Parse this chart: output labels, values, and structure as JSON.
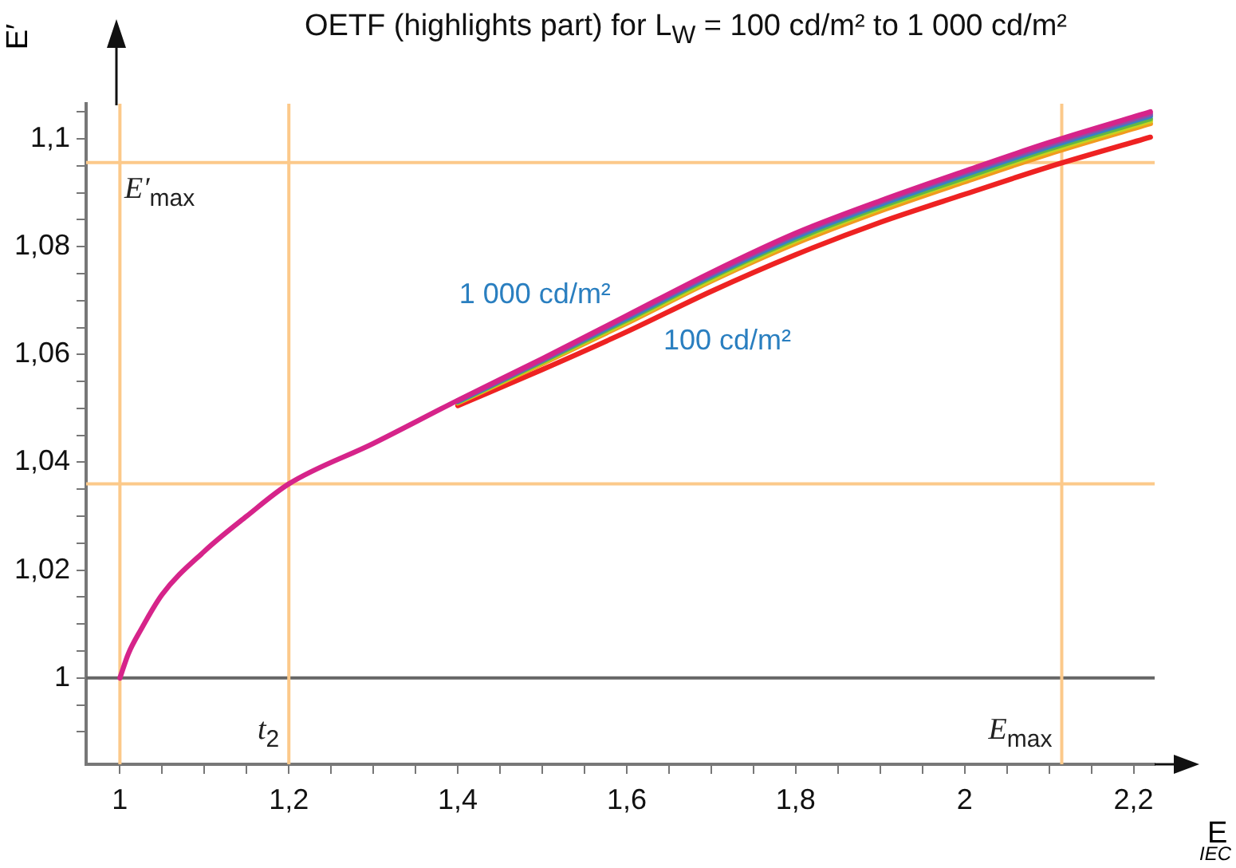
{
  "chart_data": {
    "type": "line",
    "title": "OETF (highlights part) for L$_{W}$ = 100 cd/m² to 1 000 cd/m²",
    "xlabel": "E",
    "ylabel": "E′",
    "x": [
      1,
      1.01,
      1.025,
      1.05,
      1.1,
      1.15,
      1.2,
      1.3,
      1.4,
      1.5,
      1.6,
      1.7,
      1.8,
      1.9,
      2.0,
      2.1,
      2.22
    ],
    "series": [
      {
        "color": "#d6248a",
        "values": [
          1,
          1.0045,
          1.009,
          1.0155,
          1.0235,
          1.03,
          1.036,
          1.0435,
          1.0515,
          1.0592,
          1.0672,
          1.0752,
          1.0825,
          1.0885,
          1.094,
          1.0993,
          1.105
        ]
      },
      {
        "color": "#8e4fa8",
        "values": [
          null,
          null,
          null,
          null,
          null,
          null,
          null,
          null,
          1.0514,
          1.059,
          1.067,
          1.0749,
          1.0822,
          1.0882,
          1.0937,
          1.0989,
          1.1046
        ]
      },
      {
        "color": "#3a7fc4",
        "values": [
          null,
          null,
          null,
          null,
          null,
          null,
          null,
          null,
          1.0513,
          1.0589,
          1.0667,
          1.0746,
          1.0818,
          1.0878,
          1.0933,
          1.0985,
          1.1042
        ]
      },
      {
        "color": "#5fb847",
        "values": [
          null,
          null,
          null,
          null,
          null,
          null,
          null,
          null,
          1.0512,
          1.0587,
          1.0664,
          1.0743,
          1.0814,
          1.0874,
          1.0928,
          1.0981,
          1.1037
        ]
      },
      {
        "color": "#c8d11e",
        "values": [
          null,
          null,
          null,
          null,
          null,
          null,
          null,
          null,
          1.0511,
          1.0585,
          1.0661,
          1.0739,
          1.0811,
          1.0871,
          1.0925,
          1.0977,
          1.1033
        ]
      },
      {
        "color": "#f29a1e",
        "values": [
          null,
          null,
          null,
          null,
          null,
          null,
          null,
          null,
          1.051,
          1.0583,
          1.0658,
          1.0736,
          1.0806,
          1.0866,
          1.092,
          1.0972,
          1.1028
        ]
      },
      {
        "color": "#ee2222",
        "values": [
          null,
          null,
          null,
          null,
          null,
          null,
          null,
          null,
          1.0505,
          1.0572,
          1.0642,
          1.0717,
          1.0785,
          1.0845,
          1.0897,
          1.0948,
          1.1003
        ]
      }
    ],
    "xlim": [
      0.96,
      2.225
    ],
    "xticks": [
      {
        "value": 1,
        "label": "1"
      },
      {
        "value": 1.05,
        "label": null
      },
      {
        "value": 1.1,
        "label": null
      },
      {
        "value": 1.15,
        "label": null
      },
      {
        "value": 1.2,
        "label": "1,2"
      },
      {
        "value": 1.25,
        "label": null
      },
      {
        "value": 1.3,
        "label": null
      },
      {
        "value": 1.35,
        "label": null
      },
      {
        "value": 1.4,
        "label": "1,4"
      },
      {
        "value": 1.45,
        "label": null
      },
      {
        "value": 1.5,
        "label": null
      },
      {
        "value": 1.55,
        "label": null
      },
      {
        "value": 1.6,
        "label": "1,6"
      },
      {
        "value": 1.65,
        "label": null
      },
      {
        "value": 1.7,
        "label": null
      },
      {
        "value": 1.75,
        "label": null
      },
      {
        "value": 1.8,
        "label": "1,8"
      },
      {
        "value": 1.85,
        "label": null
      },
      {
        "value": 1.9,
        "label": null
      },
      {
        "value": 1.95,
        "label": null
      },
      {
        "value": 2,
        "label": "2"
      },
      {
        "value": 2.05,
        "label": null
      },
      {
        "value": 2.1,
        "label": null
      },
      {
        "value": 2.15,
        "label": null
      },
      {
        "value": 2.2,
        "label": "2,2"
      }
    ],
    "ylim": [
      0.984,
      1.1065
    ],
    "yticks": [
      {
        "value": 0.99,
        "label": null
      },
      {
        "value": 0.995,
        "label": null
      },
      {
        "value": 1,
        "label": "1"
      },
      {
        "value": 1.005,
        "label": null
      },
      {
        "value": 1.01,
        "label": null
      },
      {
        "value": 1.015,
        "label": null
      },
      {
        "value": 1.02,
        "label": "1,02"
      },
      {
        "value": 1.025,
        "label": null
      },
      {
        "value": 1.03,
        "label": null
      },
      {
        "value": 1.035,
        "label": null
      },
      {
        "value": 1.04,
        "label": "1,04"
      },
      {
        "value": 1.045,
        "label": null
      },
      {
        "value": 1.05,
        "label": null
      },
      {
        "value": 1.055,
        "label": null
      },
      {
        "value": 1.06,
        "label": "1,06"
      },
      {
        "value": 1.065,
        "label": null
      },
      {
        "value": 1.07,
        "label": null
      },
      {
        "value": 1.075,
        "label": null
      },
      {
        "value": 1.08,
        "label": "1,08"
      },
      {
        "value": 1.085,
        "label": null
      },
      {
        "value": 1.09,
        "label": null
      },
      {
        "value": 1.095,
        "label": null
      },
      {
        "value": 1.1,
        "label": "1,1"
      },
      {
        "value": 1.105,
        "label": null
      }
    ],
    "ref_lines": [
      {
        "axis": "y",
        "value": 1.0956,
        "label": "E′$_{max}$",
        "color": "#fcc98a"
      },
      {
        "axis": "y",
        "value": 1.036,
        "label": null,
        "color": "#fcc98a"
      },
      {
        "axis": "y",
        "value": 1,
        "label": null,
        "color": "#666666"
      },
      {
        "axis": "x",
        "value": 1,
        "label": null,
        "color": "#fcc98a"
      },
      {
        "axis": "x",
        "value": 1.2,
        "label": "t$_{2}$",
        "color": "#fcc98a"
      },
      {
        "axis": "x",
        "value": 2.115,
        "label": "E$_{max}$",
        "color": "#fcc98a"
      }
    ],
    "annotations": [
      "1 000 cd/m²",
      "100 cd/m²",
      "IEC"
    ],
    "grid": false,
    "legend": false,
    "marker": "none",
    "line_style": "solid"
  }
}
